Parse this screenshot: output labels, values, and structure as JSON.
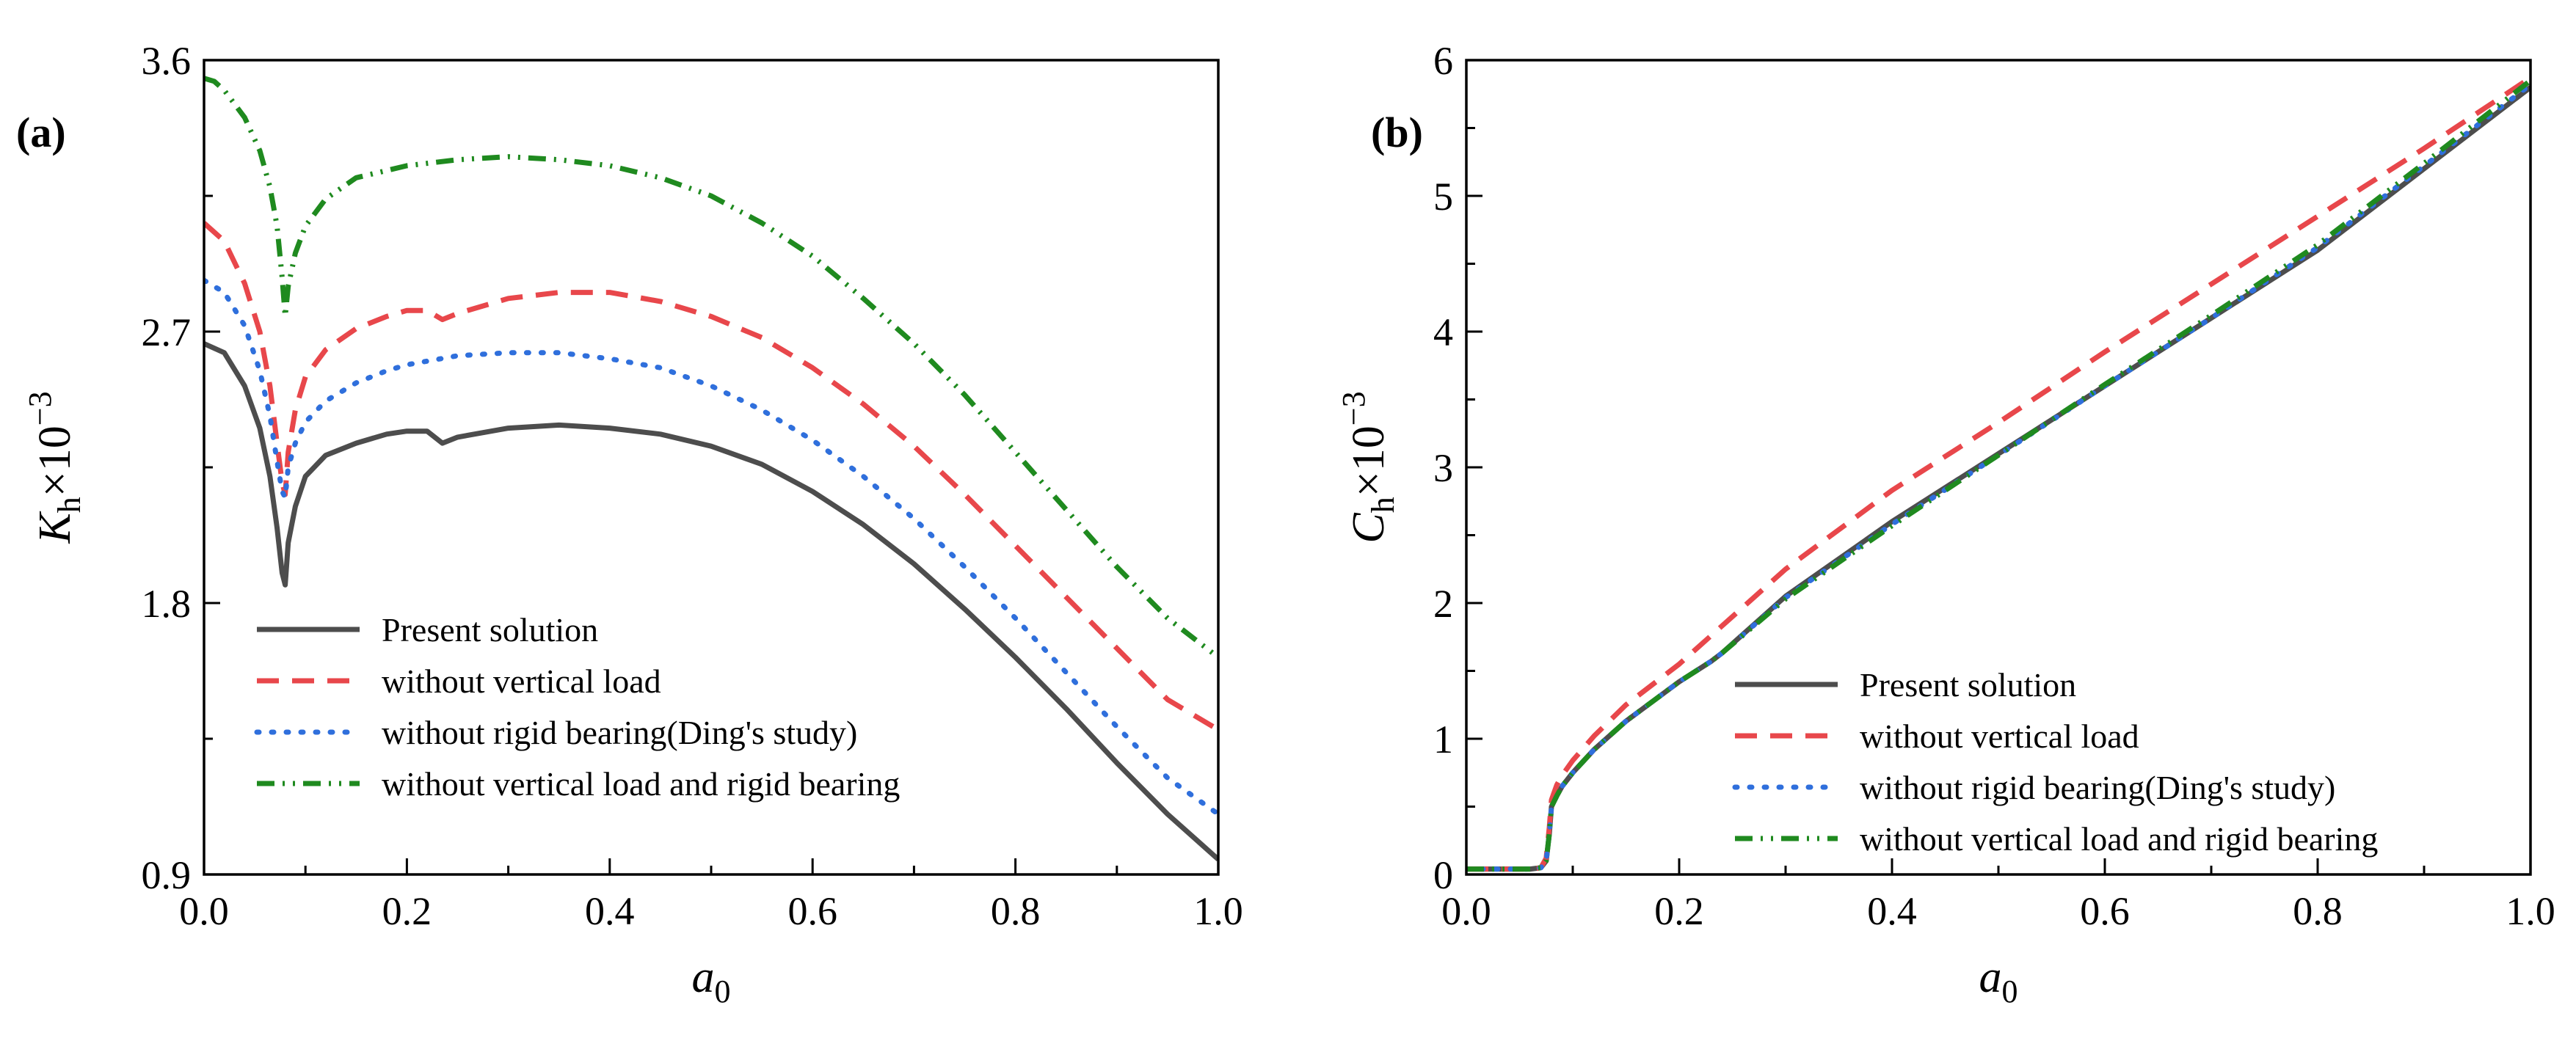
{
  "chart_data": [
    {
      "type": "line",
      "panel_label": "(a)",
      "xlabel": "a",
      "xlabel_sub": "0",
      "ylabel_main": "K",
      "ylabel_sub": "h",
      "ylabel_suffix": "×10",
      "ylabel_exp": "−3",
      "xlim": [
        0,
        1
      ],
      "ylim": [
        0.9,
        3.6
      ],
      "xticks": [
        0.0,
        0.2,
        0.4,
        0.6,
        0.8,
        1.0
      ],
      "xtick_labels": [
        "0.0",
        "0.2",
        "0.4",
        "0.6",
        "0.8",
        "1.0"
      ],
      "yticks": [
        0.9,
        1.8,
        2.7,
        3.6
      ],
      "ytick_labels": [
        "0.9",
        "1.8",
        "2.7",
        "3.6"
      ],
      "legend_position": "bottom-left",
      "series": [
        {
          "name": "Present solution",
          "color": "#4d4d4d",
          "style": "solid",
          "x": [
            0,
            0.02,
            0.04,
            0.055,
            0.065,
            0.072,
            0.077,
            0.08,
            0.083,
            0.09,
            0.1,
            0.12,
            0.15,
            0.18,
            0.2,
            0.22,
            0.235,
            0.25,
            0.3,
            0.35,
            0.4,
            0.45,
            0.5,
            0.55,
            0.6,
            0.65,
            0.7,
            0.75,
            0.8,
            0.85,
            0.9,
            0.95,
            1.0
          ],
          "y": [
            2.66,
            2.63,
            2.52,
            2.38,
            2.22,
            2.05,
            1.9,
            1.86,
            2.0,
            2.12,
            2.22,
            2.29,
            2.33,
            2.36,
            2.37,
            2.37,
            2.33,
            2.35,
            2.38,
            2.39,
            2.38,
            2.36,
            2.32,
            2.26,
            2.17,
            2.06,
            1.93,
            1.78,
            1.62,
            1.45,
            1.27,
            1.1,
            0.95
          ]
        },
        {
          "name": "without vertical load",
          "color": "#e8474b",
          "style": "dashed",
          "x": [
            0,
            0.02,
            0.04,
            0.055,
            0.065,
            0.072,
            0.077,
            0.08,
            0.083,
            0.09,
            0.1,
            0.12,
            0.15,
            0.18,
            0.2,
            0.22,
            0.235,
            0.25,
            0.3,
            0.35,
            0.4,
            0.45,
            0.5,
            0.55,
            0.6,
            0.65,
            0.7,
            0.75,
            0.8,
            0.85,
            0.9,
            0.95,
            1.0
          ],
          "y": [
            3.06,
            3.0,
            2.86,
            2.7,
            2.52,
            2.33,
            2.2,
            2.16,
            2.3,
            2.44,
            2.55,
            2.64,
            2.71,
            2.75,
            2.77,
            2.77,
            2.74,
            2.76,
            2.81,
            2.83,
            2.83,
            2.8,
            2.75,
            2.68,
            2.58,
            2.46,
            2.32,
            2.16,
            1.99,
            1.82,
            1.65,
            1.48,
            1.38
          ]
        },
        {
          "name": "without rigid bearing(Ding's study)",
          "color": "#2f6fdc",
          "style": "dotted",
          "x": [
            0,
            0.02,
            0.04,
            0.055,
            0.065,
            0.072,
            0.077,
            0.08,
            0.083,
            0.09,
            0.1,
            0.12,
            0.15,
            0.18,
            0.2,
            0.25,
            0.3,
            0.35,
            0.4,
            0.45,
            0.5,
            0.55,
            0.6,
            0.65,
            0.7,
            0.75,
            0.8,
            0.85,
            0.9,
            0.95,
            1.0
          ],
          "y": [
            2.87,
            2.83,
            2.72,
            2.57,
            2.42,
            2.27,
            2.17,
            2.15,
            2.25,
            2.33,
            2.4,
            2.47,
            2.53,
            2.57,
            2.59,
            2.62,
            2.63,
            2.63,
            2.61,
            2.58,
            2.52,
            2.44,
            2.34,
            2.22,
            2.08,
            1.92,
            1.75,
            1.57,
            1.39,
            1.22,
            1.1
          ]
        },
        {
          "name": "without vertical load and rigid bearing",
          "color": "#1f8a1f",
          "style": "dash-dot-dot",
          "x": [
            0,
            0.01,
            0.02,
            0.04,
            0.055,
            0.065,
            0.072,
            0.077,
            0.08,
            0.083,
            0.09,
            0.1,
            0.12,
            0.15,
            0.2,
            0.25,
            0.3,
            0.35,
            0.4,
            0.45,
            0.5,
            0.55,
            0.6,
            0.65,
            0.7,
            0.75,
            0.8,
            0.85,
            0.9,
            0.95,
            1.0
          ],
          "y": [
            3.54,
            3.53,
            3.5,
            3.41,
            3.3,
            3.18,
            3.05,
            2.88,
            2.75,
            2.85,
            2.96,
            3.05,
            3.14,
            3.21,
            3.25,
            3.27,
            3.28,
            3.27,
            3.25,
            3.21,
            3.15,
            3.06,
            2.95,
            2.81,
            2.66,
            2.49,
            2.3,
            2.11,
            1.92,
            1.75,
            1.62
          ]
        }
      ]
    },
    {
      "type": "line",
      "panel_label": "(b)",
      "xlabel": "a",
      "xlabel_sub": "0",
      "ylabel_main": "C",
      "ylabel_sub": "h",
      "ylabel_suffix": "×10",
      "ylabel_exp": "−3",
      "xlim": [
        0,
        1
      ],
      "ylim": [
        0,
        6
      ],
      "xticks": [
        0.0,
        0.2,
        0.4,
        0.6,
        0.8,
        1.0
      ],
      "xtick_labels": [
        "0.0",
        "0.2",
        "0.4",
        "0.6",
        "0.8",
        "1.0"
      ],
      "yticks": [
        0,
        1,
        2,
        3,
        4,
        5,
        6
      ],
      "ytick_labels": [
        "0",
        "1",
        "2",
        "3",
        "4",
        "5",
        "6"
      ],
      "legend_position": "bottom-right",
      "series": [
        {
          "name": "Present solution",
          "color": "#4d4d4d",
          "style": "solid",
          "x": [
            0,
            0.03,
            0.06,
            0.07,
            0.075,
            0.078,
            0.08,
            0.085,
            0.09,
            0.1,
            0.12,
            0.15,
            0.2,
            0.23,
            0.24,
            0.3,
            0.4,
            0.5,
            0.6,
            0.7,
            0.8,
            0.9,
            1.0
          ],
          "y": [
            0.04,
            0.04,
            0.04,
            0.05,
            0.1,
            0.3,
            0.5,
            0.58,
            0.65,
            0.75,
            0.92,
            1.13,
            1.42,
            1.57,
            1.63,
            2.05,
            2.6,
            3.1,
            3.6,
            4.1,
            4.6,
            5.2,
            5.8
          ]
        },
        {
          "name": "without vertical load",
          "color": "#e8474b",
          "style": "dashed",
          "x": [
            0,
            0.03,
            0.06,
            0.07,
            0.075,
            0.078,
            0.08,
            0.085,
            0.09,
            0.1,
            0.12,
            0.15,
            0.2,
            0.3,
            0.4,
            0.5,
            0.6,
            0.7,
            0.8,
            0.9,
            1.0
          ],
          "y": [
            0.04,
            0.04,
            0.04,
            0.05,
            0.12,
            0.35,
            0.55,
            0.66,
            0.73,
            0.84,
            1.02,
            1.25,
            1.55,
            2.25,
            2.83,
            3.33,
            3.85,
            4.35,
            4.85,
            5.35,
            5.87
          ]
        },
        {
          "name": "without rigid bearing(Ding's study)",
          "color": "#2f6fdc",
          "style": "dotted",
          "x": [
            0,
            0.03,
            0.06,
            0.07,
            0.075,
            0.078,
            0.08,
            0.085,
            0.09,
            0.1,
            0.12,
            0.15,
            0.2,
            0.23,
            0.24,
            0.3,
            0.4,
            0.5,
            0.6,
            0.7,
            0.8,
            0.9,
            1.0
          ],
          "y": [
            0.04,
            0.04,
            0.04,
            0.05,
            0.1,
            0.3,
            0.5,
            0.58,
            0.65,
            0.75,
            0.92,
            1.13,
            1.42,
            1.57,
            1.63,
            2.04,
            2.58,
            3.09,
            3.6,
            4.1,
            4.62,
            5.22,
            5.82
          ]
        },
        {
          "name": "without vertical load and rigid bearing",
          "color": "#1f8a1f",
          "style": "dash-dot-dot",
          "x": [
            0,
            0.03,
            0.06,
            0.07,
            0.075,
            0.078,
            0.08,
            0.085,
            0.09,
            0.1,
            0.12,
            0.15,
            0.2,
            0.23,
            0.24,
            0.3,
            0.4,
            0.5,
            0.6,
            0.7,
            0.8,
            0.9,
            1.0
          ],
          "y": [
            0.04,
            0.04,
            0.04,
            0.05,
            0.1,
            0.3,
            0.5,
            0.58,
            0.65,
            0.75,
            0.92,
            1.13,
            1.42,
            1.57,
            1.63,
            2.03,
            2.57,
            3.09,
            3.61,
            4.12,
            4.64,
            5.24,
            5.85
          ]
        }
      ]
    }
  ]
}
